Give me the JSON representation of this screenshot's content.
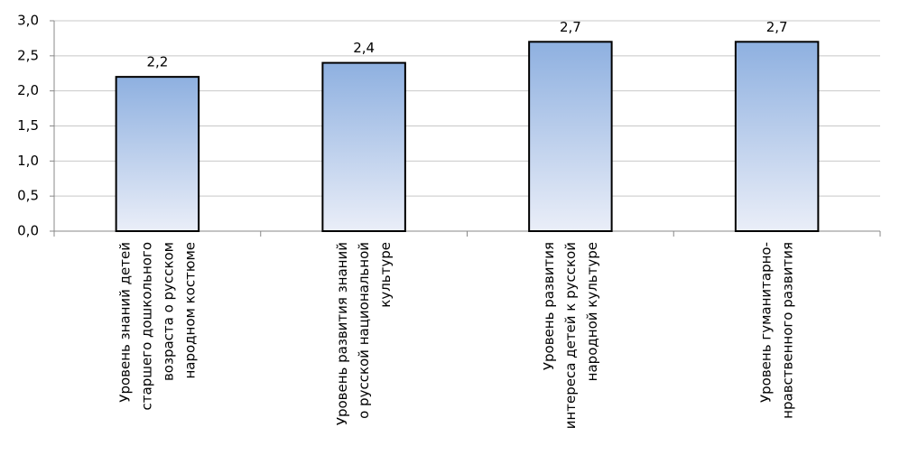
{
  "chart_data": {
    "type": "bar",
    "categories": [
      "Уровень знаний детей\nстаршего дошкольного\nвозраста о русском\nнародном костюме",
      "Уровень  развития знаний\nо русской национальной\nкультуре",
      "Уровень развития\nинтереса детей к русской\nнародной культуре",
      "Уровень гуманитарно-\nнравственного развития"
    ],
    "values": [
      2.2,
      2.4,
      2.7,
      2.7
    ],
    "value_labels": [
      "2,2",
      "2,4",
      "2,7",
      "2,7"
    ],
    "color": "#8eb0e0",
    "ylim": [
      0,
      3
    ],
    "yticks": [
      {
        "value": 0,
        "label": "0,0"
      },
      {
        "value": 0.5,
        "label": "0,5"
      },
      {
        "value": 1,
        "label": "1,0"
      },
      {
        "value": 1.5,
        "label": "1,5"
      },
      {
        "value": 2,
        "label": "2,0"
      },
      {
        "value": 2.5,
        "label": "2,5"
      },
      {
        "value": 3,
        "label": "3,0"
      }
    ],
    "grid": true
  }
}
